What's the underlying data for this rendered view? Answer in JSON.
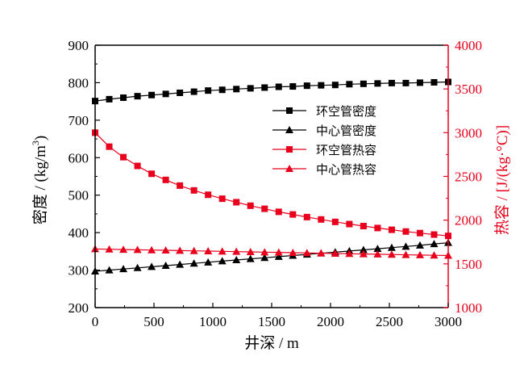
{
  "chart_data": {
    "type": "line",
    "xlabel": "井深 / m",
    "ylabel_left": "密度 / (kg/m³)",
    "ylabel_left_base": "密度 / (kg/m",
    "ylabel_left_sup": "3",
    "ylabel_left_close": ")",
    "ylabel_right": "热容 / [J/(kg·°C)]",
    "xlim": [
      0,
      3000
    ],
    "ylim_left": [
      200,
      900
    ],
    "ylim_right": [
      1000,
      4000
    ],
    "x_ticks": [
      0,
      500,
      1000,
      1500,
      2000,
      2500,
      3000
    ],
    "y_left_ticks": [
      200,
      300,
      400,
      500,
      600,
      700,
      800,
      900
    ],
    "y_right_ticks": [
      1000,
      1500,
      2000,
      2500,
      3000,
      3500,
      4000
    ],
    "legend_position": "center-right",
    "grid": false,
    "colors": {
      "black": "#000000",
      "red": "#e8001c"
    },
    "x": [
      0,
      120,
      240,
      360,
      480,
      600,
      720,
      840,
      960,
      1080,
      1200,
      1320,
      1440,
      1560,
      1680,
      1800,
      1920,
      2040,
      2160,
      2280,
      2400,
      2520,
      2640,
      2760,
      2880,
      3000
    ],
    "series": [
      {
        "name": "环空管密度",
        "axis": "left",
        "marker": "square",
        "color": "#000000",
        "values": [
          751,
          756,
          760,
          764,
          767,
          770,
          773,
          776,
          779,
          781,
          783,
          785,
          787,
          789,
          790,
          792,
          793,
          794,
          796,
          797,
          798,
          799,
          799,
          800,
          801,
          802
        ]
      },
      {
        "name": "中心管密度",
        "axis": "left",
        "marker": "triangle",
        "color": "#000000",
        "values": [
          297,
          300,
          303,
          306,
          309,
          312,
          315,
          318,
          321,
          324,
          327,
          330,
          333,
          336,
          339,
          342,
          345,
          348,
          351,
          354,
          357,
          360,
          363,
          366,
          370,
          373
        ]
      },
      {
        "name": "环空管热容",
        "axis": "right",
        "marker": "square",
        "color": "#e8001c",
        "values": [
          3000,
          2840,
          2720,
          2620,
          2530,
          2460,
          2395,
          2340,
          2290,
          2245,
          2205,
          2165,
          2130,
          2095,
          2065,
          2035,
          2008,
          1980,
          1955,
          1932,
          1910,
          1890,
          1870,
          1852,
          1835,
          1820
        ]
      },
      {
        "name": "中心管热容",
        "axis": "right",
        "marker": "triangle",
        "color": "#e8001c",
        "values": [
          1670,
          1667,
          1664,
          1661,
          1658,
          1655,
          1652,
          1649,
          1646,
          1643,
          1640,
          1637,
          1634,
          1631,
          1628,
          1625,
          1622,
          1619,
          1616,
          1613,
          1610,
          1607,
          1604,
          1601,
          1598,
          1595
        ]
      }
    ]
  }
}
